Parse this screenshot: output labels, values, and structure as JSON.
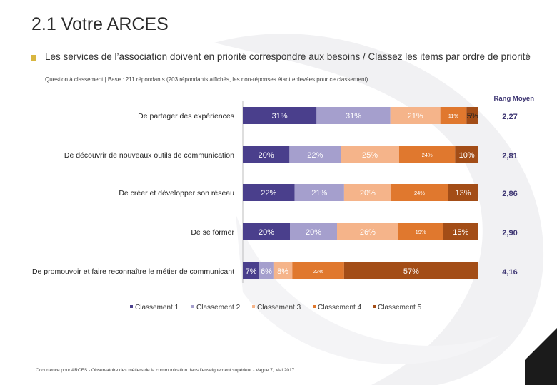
{
  "header": {
    "title": "2.1 Votre ARCES",
    "question": "Les services de l’association doivent en priorité correspondre aux besoins / Classez les items  par ordre de priorité",
    "subtitle": "Question à classement | Base : 211 répondants (203 répondants affichés, les non-réponses étant enlevées pour ce classement)",
    "rank_header": "Rang Moyen"
  },
  "footer": {
    "text": "Occurrence pour ARCES - Observatoire des métiers de la communication dans l’enseignement supérieur - Vague 7, Mai 2017"
  },
  "chart_data": {
    "type": "bar",
    "orientation": "horizontal",
    "stacked": "100%",
    "categories": [
      "De partager des expériences",
      "De découvrir de nouveaux outils de communication",
      "De créer et développer son réseau",
      "De se former",
      "De promouvoir et faire reconnaître le métier de communicant"
    ],
    "series": [
      {
        "name": "Classement 1",
        "color": "#4a3f8c",
        "values": [
          31,
          20,
          22,
          20,
          7
        ]
      },
      {
        "name": "Classement 2",
        "color": "#a59fcd",
        "values": [
          31,
          22,
          21,
          20,
          6
        ]
      },
      {
        "name": "Classement 3",
        "color": "#f5b48a",
        "values": [
          21,
          25,
          20,
          26,
          8
        ]
      },
      {
        "name": "Classement 4",
        "color": "#e0782e",
        "values": [
          11,
          24,
          24,
          19,
          22
        ]
      },
      {
        "name": "Classement 5",
        "color": "#a34d17",
        "values": [
          5,
          10,
          13,
          15,
          57
        ]
      }
    ],
    "labels": [
      [
        "31%",
        "31%",
        "21%",
        "11%",
        "5%"
      ],
      [
        "20%",
        "22%",
        "25%",
        "24%",
        "10%"
      ],
      [
        "22%",
        "21%",
        "20%",
        "24%",
        "13%"
      ],
      [
        "20%",
        "20%",
        "26%",
        "19%",
        "15%"
      ],
      [
        "7%",
        "6%",
        "8%",
        "22%",
        "57%"
      ]
    ],
    "rang_moyen": [
      "2,27",
      "2,81",
      "2,86",
      "2,90",
      "4,16"
    ],
    "legend_position": "bottom",
    "xlim": [
      0,
      100
    ]
  }
}
